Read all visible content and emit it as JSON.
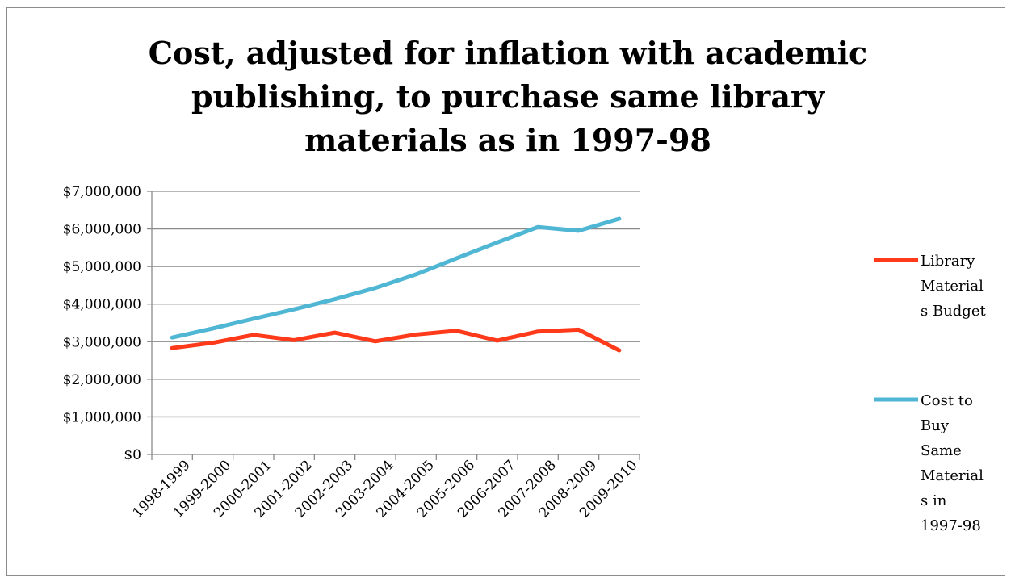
{
  "chart_data": {
    "type": "line",
    "title_lines": [
      "Cost, adjusted for inflation with academic",
      "publishing, to purchase same library",
      "materials as in 1997-98"
    ],
    "xlabel": "",
    "ylabel": "",
    "categories": [
      "1998-1999",
      "1999-2000",
      "2000-2001",
      "2001-2002",
      "2002-2003",
      "2003-2004",
      "2004-2005",
      "2005-2006",
      "2006-2007",
      "2007-2008",
      "2008-2009",
      "2009-2010"
    ],
    "y_ticks": [
      "$0",
      "$1,000,000",
      "$2,000,000",
      "$3,000,000",
      "$4,000,000",
      "$5,000,000",
      "$6,000,000",
      "$7,000,000"
    ],
    "ylim": [
      0,
      7000000
    ],
    "grid": true,
    "legend_position": "right",
    "series": [
      {
        "name_lines": [
          "Library",
          "Material",
          "s Budget"
        ],
        "color": "#ff3a1a",
        "values": [
          2830000,
          2970000,
          3180000,
          3040000,
          3240000,
          3010000,
          3190000,
          3290000,
          3030000,
          3270000,
          3320000,
          2770000
        ]
      },
      {
        "name_lines": [
          "Cost to",
          "Buy",
          "Same",
          "Material",
          "s in",
          "1997-98"
        ],
        "color": "#4fb6d4",
        "values": [
          3110000,
          3350000,
          3610000,
          3860000,
          4130000,
          4430000,
          4790000,
          5220000,
          5640000,
          6050000,
          5950000,
          6270000
        ]
      }
    ]
  }
}
